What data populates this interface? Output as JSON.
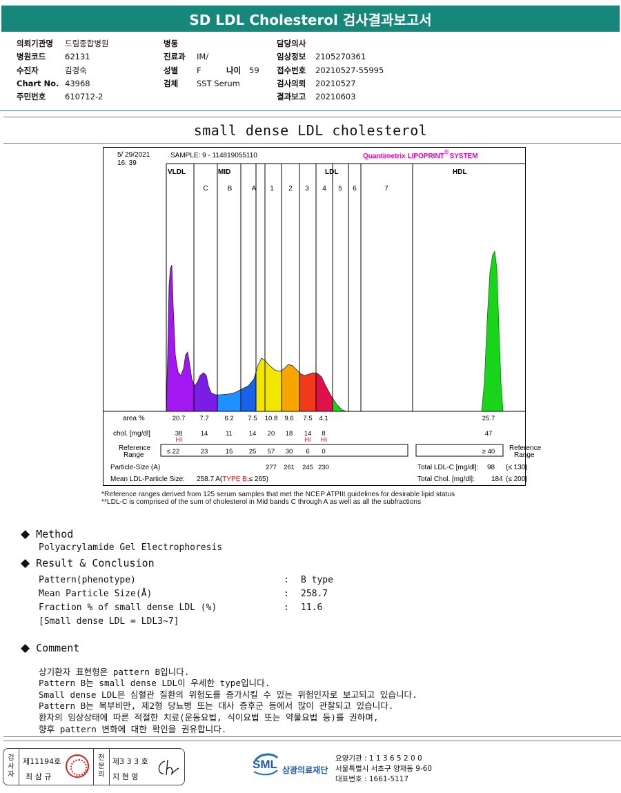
{
  "header": {
    "title": "SD LDL Cholesterol 검사결과보고서"
  },
  "info": {
    "col1": [
      {
        "label": "의뢰기관명",
        "value": "드림종합병원"
      },
      {
        "label": "병원코드",
        "value": "62131"
      },
      {
        "label": "수진자",
        "value": "김경숙"
      },
      {
        "label": "Chart No.",
        "value": "43968"
      },
      {
        "label": "주민번호",
        "value": "610712-2"
      }
    ],
    "col2": [
      {
        "label": "병동",
        "value": ""
      },
      {
        "label": "진료과",
        "value": "IM/"
      },
      {
        "label": "성별",
        "value": "F"
      },
      {
        "label": "검체",
        "value": "SST Serum"
      }
    ],
    "age_label": "나이",
    "age_value": "59",
    "col3": [
      {
        "label": "담당의사",
        "value": ""
      },
      {
        "label": "임상정보",
        "value": "2105270361"
      },
      {
        "label": "접수번호",
        "value": "20210527-55995"
      },
      {
        "label": "검사의뢰",
        "value": "20210527"
      },
      {
        "label": "결과보고",
        "value": "20210603"
      }
    ]
  },
  "section_title": "small dense LDL cholesterol",
  "chart": {
    "date": "5/ 29/2021",
    "time": "16: 39",
    "sample": "SAMPLE:    9 - 114819055110",
    "brand": "Quantimetrix LIPOPRINT",
    "brand_reg": "®",
    "brand_suffix": "SYSTEM",
    "groups": {
      "vldl": "VLDL",
      "mid": "MID",
      "ldl": "LDL",
      "hdl": "HDL"
    },
    "bands": [
      "C",
      "B",
      "A",
      "1",
      "2",
      "3",
      "4",
      "5",
      "6",
      "7"
    ],
    "row_labels": {
      "area": "area %",
      "chol": "chol. [mg/dl]",
      "ref1": "Reference",
      "ref2": "Range",
      "ref_right1": "Reference",
      "ref_right2": "Range",
      "particle": "Particle-Size (A)",
      "mean": "Mean LDL-Particle Size:",
      "mean_value": "258.7 A",
      "mean_type": "TYPE B",
      "mean_ref": ";≤ 265)",
      "mean_ref_open": "(",
      "total_ldl": "Total LDL-C [mg/dl]:",
      "total_ldl_value": "98",
      "total_ldl_ref": "(≤ 130)",
      "total_chol": "Total Chol. [mg/dl]:",
      "total_chol_value": "184",
      "total_chol_ref": "(≤ 200)"
    },
    "area": [
      "20.7",
      "7.7",
      "6.2",
      "7.5",
      "10.8",
      "9.6",
      "7.5",
      "4.1",
      "25.7"
    ],
    "chol": [
      "38",
      "14",
      "11",
      "14",
      "20",
      "18",
      "14",
      "8",
      "47"
    ],
    "hi": [
      "HI",
      "HI",
      "HI"
    ],
    "ref": [
      "≤ 22",
      "23",
      "15",
      "25",
      "57",
      "30",
      "6",
      "0",
      "≥ 40"
    ],
    "particle": [
      "277",
      "261",
      "245",
      "230"
    ]
  },
  "chart_data": {
    "type": "area",
    "title": "",
    "bands": [
      "VLDL",
      "C",
      "B",
      "A",
      "LDL1",
      "LDL2",
      "LDL3",
      "LDL4",
      "HDL"
    ],
    "area_percent": [
      20.7,
      7.7,
      6.2,
      7.5,
      10.8,
      9.6,
      7.5,
      4.1,
      25.7
    ],
    "cholesterol_mg_dl": [
      38,
      14,
      11,
      14,
      20,
      18,
      14,
      8,
      47
    ],
    "colors": [
      "#a317f0",
      "#7a1ee6",
      "#1e90ff",
      "#1a63e8",
      "#f2e600",
      "#f7a600",
      "#f23a1a",
      "#e0104a",
      "#19d41a"
    ]
  },
  "footnotes": [
    "*Reference ranges derived from 125 serum samples that met the NCEP ATPIII guidelines for desirable lipid status",
    "**LDL-C is comprised of the sum of cholesterol in Mid bands C through A as well as all the subfractions"
  ],
  "method": {
    "heading": "Method",
    "text": "Polyacrylamide Gel Electrophoresis"
  },
  "result": {
    "heading": "Result & Conclusion",
    "rows": [
      {
        "key": "Pattern(phenotype)",
        "value": "B type"
      },
      {
        "key": "Mean Particle Size(Å)",
        "value": "258.7"
      },
      {
        "key": "Fraction % of small dense LDL (%)",
        "value": "11.6"
      }
    ],
    "note": "[Small dense LDL = LDL3~7]",
    "colon": ":"
  },
  "comment": {
    "heading": "Comment",
    "lines": [
      "상기환자 표현형은 pattern B입니다.",
      "Pattern B는 small dense LDL이 우세한 type입니다.",
      "Small dense LDL은 심혈관 질환의 위험도를 증가시킬 수 있는 위험인자로 보고되고 있습니다.",
      "Pattern B는 복부비만, 제2형 당뇨병 또는 대사 증후군 등에서 많이 관찰되고 있습니다.",
      "환자의 임상상태에 따른 적절한 치료(운동요법, 식이요법 또는 약물요법 등)를 권하며,",
      "향후 pattern 변화에 대한 확인을 권유합니다."
    ]
  },
  "footer": {
    "examiner_v": [
      "검",
      "사",
      "자"
    ],
    "examiner_no": "제11194호",
    "examiner_name": "최 삼 규",
    "specialist_v": [
      "전",
      "문",
      "의"
    ],
    "specialist_no": "제3 3 3 호",
    "specialist_name": "지 현 영",
    "org_abbr": "SML",
    "org_name": "삼광의료재단",
    "org_lines": [
      "요양기관 : 1 1 3 6 5 2 0 0",
      "서울특별시 서초구 양재동 9-60",
      "대표번호 : 1661-5117"
    ]
  }
}
